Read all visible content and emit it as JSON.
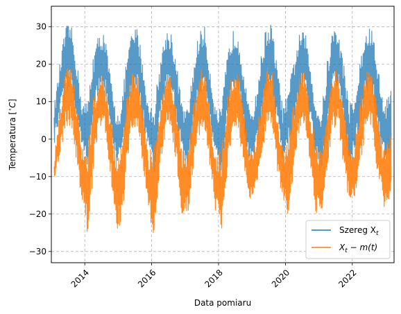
{
  "chart_data": {
    "type": "line",
    "xlabel": "Data pomiaru",
    "ylabel": "Temperatura [$^\\circ C$]",
    "ylabel_parts": {
      "text": "Temperatura [",
      "sup": "∘",
      "unit": "C",
      "close": "]"
    },
    "x_range": [
      "2013-01-01",
      "2023-03-31"
    ],
    "ylim": [
      -33,
      35.5
    ],
    "grid": true,
    "legend_position": "lower-right",
    "x_ticks": [
      "2014",
      "2016",
      "2018",
      "2020",
      "2022"
    ],
    "y_ticks": [
      -30,
      -20,
      -10,
      0,
      10,
      20,
      30
    ],
    "y_tick_labels": [
      "−30",
      "−20",
      "−10",
      "0",
      "10",
      "20",
      "30"
    ],
    "sampling": "monthly envelope approximating daily data",
    "series": [
      {
        "name": "Szereg $X_t$",
        "legend_parts": {
          "base": "Szereg X",
          "sub": "t"
        },
        "color": "#1f77b4",
        "x": [
          "2013-02",
          "2013-04",
          "2013-06",
          "2013-08",
          "2013-10",
          "2013-12",
          "2014-02",
          "2014-04",
          "2014-06",
          "2014-08",
          "2014-10",
          "2014-12",
          "2015-02",
          "2015-04",
          "2015-06",
          "2015-08",
          "2015-10",
          "2015-12",
          "2016-02",
          "2016-04",
          "2016-06",
          "2016-08",
          "2016-10",
          "2016-12",
          "2017-02",
          "2017-04",
          "2017-06",
          "2017-08",
          "2017-10",
          "2017-12",
          "2018-02",
          "2018-04",
          "2018-06",
          "2018-08",
          "2018-10",
          "2018-12",
          "2019-02",
          "2019-04",
          "2019-06",
          "2019-08",
          "2019-10",
          "2019-12",
          "2020-02",
          "2020-04",
          "2020-06",
          "2020-08",
          "2020-10",
          "2020-12",
          "2021-02",
          "2021-04",
          "2021-06",
          "2021-08",
          "2021-10",
          "2021-12",
          "2022-02",
          "2022-04",
          "2022-06",
          "2022-08",
          "2022-10",
          "2022-12",
          "2023-02",
          "2023-03"
        ],
        "min": [
          -2,
          5,
          12,
          14,
          5,
          -4,
          -7,
          4,
          12,
          13,
          4,
          -6,
          -6,
          3,
          12,
          13,
          3,
          -3,
          -10,
          3,
          12,
          13,
          4,
          -5,
          -8,
          2,
          11,
          13,
          4,
          -6,
          -10,
          3,
          12,
          13,
          3,
          -7,
          -4,
          2,
          12,
          14,
          4,
          -6,
          -1,
          2,
          12,
          14,
          4,
          -6,
          -12,
          1,
          12,
          14,
          3,
          -8,
          -3,
          4,
          12,
          13,
          2,
          -5,
          -8,
          -3
        ],
        "max": [
          9,
          20,
          30,
          31,
          22,
          10,
          10,
          23,
          28,
          29,
          18,
          8,
          8,
          22,
          29,
          30,
          20,
          8,
          10,
          21,
          29,
          29,
          20,
          9,
          8,
          20,
          29,
          30,
          19,
          8,
          8,
          22,
          29,
          29,
          19,
          8,
          10,
          21,
          30,
          31,
          20,
          9,
          12,
          22,
          28,
          29,
          20,
          10,
          8,
          21,
          30,
          29,
          20,
          10,
          11,
          22,
          29,
          30,
          21,
          10,
          12,
          13
        ]
      },
      {
        "name": "$X_t - m(t)$",
        "legend_parts": {
          "a": "X",
          "a_sub": "t",
          "rest": " − m(t)"
        },
        "color": "#ff7f0e",
        "x": [
          "2013-02",
          "2013-04",
          "2013-06",
          "2013-08",
          "2013-10",
          "2013-12",
          "2014-02",
          "2014-04",
          "2014-06",
          "2014-08",
          "2014-10",
          "2014-12",
          "2015-02",
          "2015-04",
          "2015-06",
          "2015-08",
          "2015-10",
          "2015-12",
          "2016-02",
          "2016-04",
          "2016-06",
          "2016-08",
          "2016-10",
          "2016-12",
          "2017-02",
          "2017-04",
          "2017-06",
          "2017-08",
          "2017-10",
          "2017-12",
          "2018-02",
          "2018-04",
          "2018-06",
          "2018-08",
          "2018-10",
          "2018-12",
          "2019-02",
          "2019-04",
          "2019-06",
          "2019-08",
          "2019-10",
          "2019-12",
          "2020-02",
          "2020-04",
          "2020-06",
          "2020-08",
          "2020-10",
          "2020-12",
          "2021-02",
          "2021-04",
          "2021-06",
          "2021-08",
          "2021-10",
          "2021-12",
          "2022-02",
          "2022-04",
          "2022-06",
          "2022-08",
          "2022-10",
          "2022-12",
          "2023-02",
          "2023-03"
        ],
        "min": [
          -13,
          -5,
          2,
          4,
          -6,
          -17,
          -26,
          -10,
          2,
          3,
          -8,
          -24,
          -25,
          -8,
          2,
          3,
          -8,
          -20,
          -29,
          -10,
          2,
          3,
          -8,
          -22,
          -20,
          -8,
          1,
          3,
          -8,
          -20,
          -27,
          -10,
          2,
          3,
          -8,
          -17,
          -15,
          -8,
          2,
          4,
          -8,
          -18,
          -20,
          -9,
          2,
          4,
          -8,
          -20,
          -21,
          -9,
          2,
          4,
          -8,
          -18,
          -16,
          -6,
          2,
          3,
          -9,
          -19,
          -20,
          -13
        ],
        "max": [
          -5,
          7,
          19,
          20,
          11,
          -2,
          -2,
          11,
          17,
          17,
          7,
          -2,
          -2,
          11,
          18,
          18,
          8,
          -3,
          -1,
          10,
          18,
          18,
          8,
          -2,
          -3,
          9,
          18,
          19,
          7,
          -3,
          -2,
          11,
          18,
          18,
          8,
          -3,
          -1,
          10,
          19,
          20,
          8,
          -2,
          1,
          10,
          17,
          18,
          8,
          -1,
          -3,
          10,
          19,
          18,
          8,
          -2,
          0,
          11,
          18,
          19,
          9,
          -1,
          1,
          2
        ]
      }
    ]
  }
}
